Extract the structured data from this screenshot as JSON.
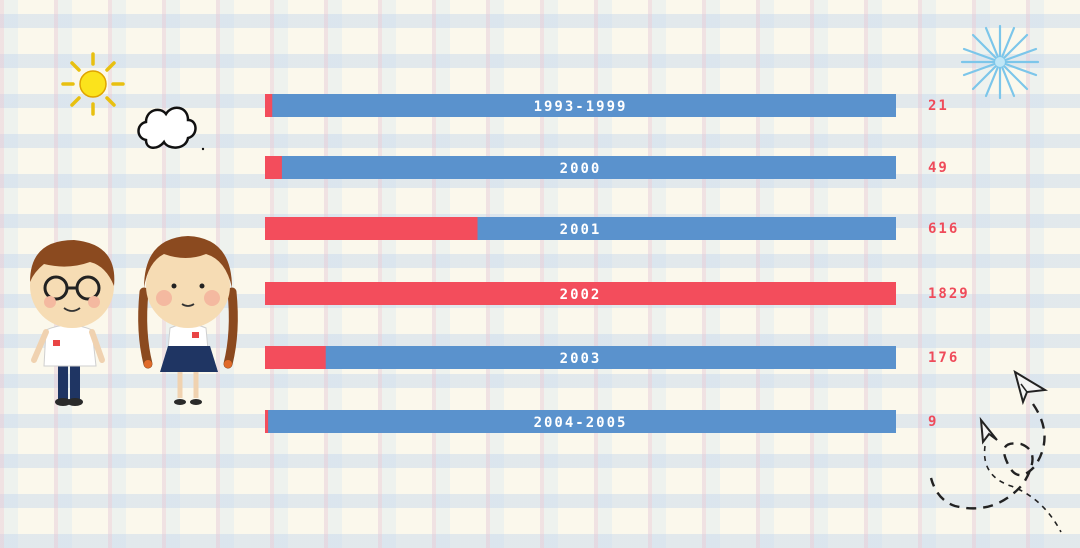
{
  "chart_data": {
    "type": "bar",
    "orientation": "horizontal",
    "categories": [
      "1993-1999",
      "2000",
      "2001",
      "2002",
      "2003",
      "2004-2005"
    ],
    "values": [
      21,
      49,
      616,
      1829,
      176,
      9
    ],
    "max_value": 1829,
    "colors": {
      "fill": "#f34d5c",
      "track": "#5a92cd",
      "value_text": "#ef4b5a",
      "label_text": "#ffffff"
    }
  }
}
